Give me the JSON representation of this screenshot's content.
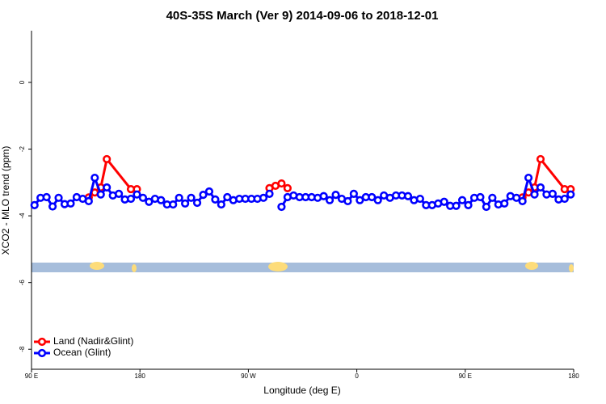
{
  "chart_data": {
    "type": "line",
    "title": "40S-35S March (Ver 9)   2014-09-06 to 2018-12-01",
    "x_label": "Longitude (deg E)",
    "y_label": "XCO2 - MLO trend (ppm)",
    "xlim": [
      90,
      540
    ],
    "ylim": [
      -8.6,
      1.55
    ],
    "xticks": [
      {
        "value": 90,
        "label": "90 E"
      },
      180,
      {
        "value": 270,
        "label": "90 W"
      },
      {
        "value": 360,
        "label": "0"
      },
      {
        "value": 450,
        "label": "90 E"
      },
      {
        "value": 540,
        "label": "180"
      }
    ],
    "yticks": [
      -8,
      -6,
      -4,
      -2,
      0
    ],
    "legend": "bottom-left",
    "series": [
      {
        "name": "Land (Nadir&Glint)",
        "color": "#ff0000",
        "x": [
          137.5,
          142.5,
          147.5,
          152.5,
          172.5,
          177.5,
          230,
          287.5,
          292.5,
          297.5,
          302.5,
          420,
          497.5,
          502.5,
          507.5,
          512.5,
          532.5,
          537.5
        ],
        "values": [
          -3.45,
          -3.3,
          -3.15,
          -2.3,
          -3.2,
          -3.2,
          null,
          -3.17,
          -3.1,
          -3.03,
          -3.17,
          null,
          -3.45,
          -3.3,
          -3.15,
          -2.3,
          -3.2,
          -3.2
        ]
      },
      {
        "name": "Ocean (Glint)",
        "color": "#0000ff",
        "x": [
          92.5,
          97.5,
          102.5,
          107.5,
          112.5,
          117.5,
          122.5,
          127.5,
          132.5,
          137.5,
          142.5,
          147.5,
          152.5,
          157.5,
          162.5,
          167.5,
          172.5,
          177.5,
          182.5,
          187.5,
          192.5,
          197.5,
          202.5,
          207.5,
          212.5,
          217.5,
          222.5,
          227.5,
          232.5,
          237.5,
          242.5,
          247.5,
          252.5,
          257.5,
          262.5,
          267.5,
          272.5,
          277.5,
          282.5,
          287.5,
          292.5,
          297.5,
          302.5,
          307.5,
          312.5,
          317.5,
          322.5,
          327.5,
          332.5,
          337.5,
          342.5,
          347.5,
          352.5,
          357.5,
          362.5,
          367.5,
          372.5,
          377.5,
          382.5,
          387.5,
          392.5,
          397.5,
          402.5,
          407.5,
          412.5,
          417.5,
          422.5,
          427.5,
          432.5,
          437.5,
          442.5,
          447.5,
          452.5,
          457.5,
          462.5,
          467.5,
          472.5,
          477.5,
          482.5,
          487.5,
          492.5,
          497.5,
          502.5,
          507.5,
          512.5,
          517.5,
          522.5,
          527.5,
          532.5,
          537.5
        ],
        "values": [
          -3.68,
          -3.46,
          -3.44,
          -3.72,
          -3.46,
          -3.65,
          -3.63,
          -3.44,
          -3.49,
          -3.56,
          -2.86,
          -3.36,
          -3.15,
          -3.39,
          -3.34,
          -3.51,
          -3.49,
          -3.36,
          -3.46,
          -3.58,
          -3.49,
          -3.53,
          -3.66,
          -3.66,
          -3.46,
          -3.63,
          -3.46,
          -3.61,
          -3.37,
          -3.27,
          -3.51,
          -3.66,
          -3.44,
          -3.53,
          -3.49,
          -3.49,
          -3.49,
          -3.49,
          -3.46,
          -3.34,
          null,
          -3.73,
          -3.44,
          -3.39,
          -3.44,
          -3.44,
          -3.44,
          -3.46,
          -3.41,
          -3.53,
          -3.37,
          -3.49,
          -3.56,
          -3.34,
          -3.53,
          -3.44,
          -3.44,
          -3.53,
          -3.39,
          -3.46,
          -3.39,
          -3.39,
          -3.41,
          -3.53,
          -3.49,
          -3.68,
          -3.68,
          -3.63,
          -3.58,
          -3.7,
          -3.7,
          -3.53,
          -3.68,
          -3.46,
          -3.44,
          -3.73,
          -3.46,
          -3.66,
          -3.63,
          -3.41,
          -3.46,
          -3.56,
          -2.86,
          -3.36,
          -3.15,
          -3.36,
          -3.34,
          -3.51,
          -3.49,
          -3.36
        ]
      }
    ]
  }
}
